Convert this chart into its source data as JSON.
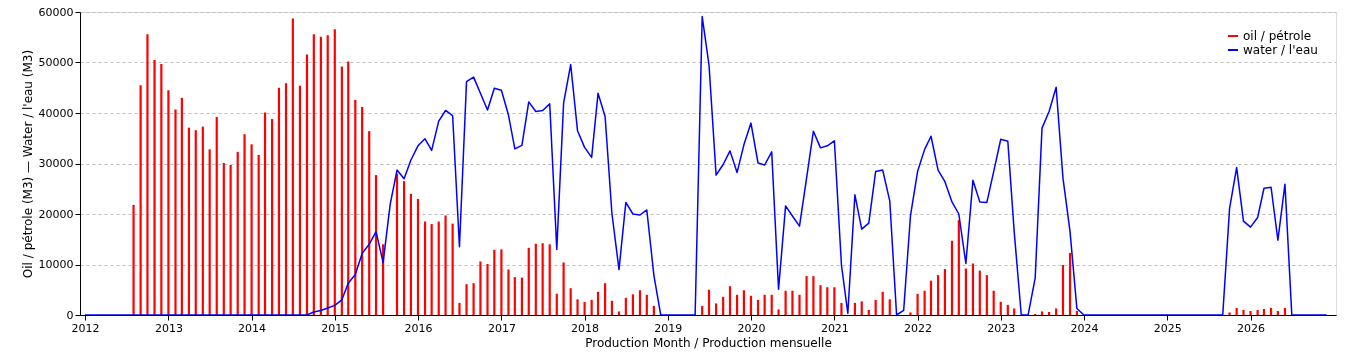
{
  "chart_data": {
    "type": "bar",
    "xlabel": "Production Month / Production mensuelle",
    "ylabel": "Oil / pétrole (M3)  —  Water / l'eau (M3)",
    "x": [
      "2012-01",
      "2012-02",
      "2012-03",
      "2012-04",
      "2012-05",
      "2012-06",
      "2012-07",
      "2012-08",
      "2012-09",
      "2012-10",
      "2012-11",
      "2012-12",
      "2013-01",
      "2013-02",
      "2013-03",
      "2013-04",
      "2013-05",
      "2013-06",
      "2013-07",
      "2013-08",
      "2013-09",
      "2013-10",
      "2013-11",
      "2013-12",
      "2014-01",
      "2014-02",
      "2014-03",
      "2014-04",
      "2014-05",
      "2014-06",
      "2014-07",
      "2014-08",
      "2014-09",
      "2014-10",
      "2014-11",
      "2014-12",
      "2015-01",
      "2015-02",
      "2015-03",
      "2015-04",
      "2015-05",
      "2015-06",
      "2015-07",
      "2015-08",
      "2015-09",
      "2015-10",
      "2015-11",
      "2015-12",
      "2016-01",
      "2016-02",
      "2016-03",
      "2016-04",
      "2016-05",
      "2016-06",
      "2016-07",
      "2016-08",
      "2016-09",
      "2016-10",
      "2016-11",
      "2016-12",
      "2017-01",
      "2017-02",
      "2017-03",
      "2017-04",
      "2017-05",
      "2017-06",
      "2017-07",
      "2017-08",
      "2017-09",
      "2017-10",
      "2017-11",
      "2017-12",
      "2018-01",
      "2018-02",
      "2018-03",
      "2018-04",
      "2018-05",
      "2018-06",
      "2018-07",
      "2018-08",
      "2018-09",
      "2018-10",
      "2018-11",
      "2018-12",
      "2019-01",
      "2019-02",
      "2019-03",
      "2019-04",
      "2019-05",
      "2019-06",
      "2019-07",
      "2019-08",
      "2019-09",
      "2019-10",
      "2019-11",
      "2019-12",
      "2020-01",
      "2020-02",
      "2020-03",
      "2020-04",
      "2020-05",
      "2020-06",
      "2020-07",
      "2020-08",
      "2020-09",
      "2020-10",
      "2020-11",
      "2020-12",
      "2021-01",
      "2021-02",
      "2021-03",
      "2021-04",
      "2021-05",
      "2021-06",
      "2021-07",
      "2021-08",
      "2021-09",
      "2021-10",
      "2021-11",
      "2021-12",
      "2022-01",
      "2022-02",
      "2022-03",
      "2022-04",
      "2022-05",
      "2022-06",
      "2022-07",
      "2022-08",
      "2022-09",
      "2022-10",
      "2022-11",
      "2022-12",
      "2023-01",
      "2023-02",
      "2023-03",
      "2023-04",
      "2023-05",
      "2023-06",
      "2023-07",
      "2023-08",
      "2023-09",
      "2023-10",
      "2023-11",
      "2023-12",
      "2024-01",
      "2024-02",
      "2024-03",
      "2024-04",
      "2024-05",
      "2024-06",
      "2024-07",
      "2024-08",
      "2024-09",
      "2024-10",
      "2024-11",
      "2024-12",
      "2025-01",
      "2025-02",
      "2025-03",
      "2025-04",
      "2025-05",
      "2025-06",
      "2025-07",
      "2025-08",
      "2025-09",
      "2025-10",
      "2025-11",
      "2025-12",
      "2026-01",
      "2026-02",
      "2026-03",
      "2026-04",
      "2026-05",
      "2026-06",
      "2026-07",
      "2026-08",
      "2026-09",
      "2026-10",
      "2026-11",
      "2026-12"
    ],
    "series": [
      {
        "name": "oil / pétrole",
        "color": "#ff0000",
        "values": [
          null,
          null,
          null,
          null,
          null,
          null,
          null,
          21800,
          45500,
          55600,
          50500,
          49700,
          44500,
          40700,
          43000,
          37100,
          36600,
          37300,
          32800,
          39200,
          30100,
          29700,
          32300,
          35800,
          33800,
          31700,
          40100,
          38800,
          45000,
          45900,
          58700,
          45400,
          51600,
          55600,
          55100,
          55400,
          56600,
          49200,
          50200,
          42600,
          41200,
          36400,
          27700,
          14000,
          null,
          28000,
          26500,
          24000,
          23000,
          18500,
          18000,
          18500,
          19700,
          18100,
          2400,
          6100,
          6300,
          10600,
          10100,
          12900,
          13000,
          9000,
          7500,
          7400,
          13300,
          14100,
          14200,
          14000,
          4200,
          10400,
          5300,
          3100,
          2600,
          3000,
          4600,
          6300,
          2800,
          700,
          3400,
          4100,
          4900,
          4000,
          1800,
          null,
          null,
          null,
          null,
          null,
          null,
          1800,
          5000,
          2300,
          3600,
          5700,
          4000,
          4900,
          3800,
          3000,
          4000,
          4000,
          1100,
          4800,
          4800,
          4000,
          7700,
          7700,
          5900,
          5500,
          5500,
          2400,
          null,
          2400,
          2700,
          1000,
          3000,
          4600,
          3100,
          null,
          null,
          500,
          4200,
          4800,
          6800,
          7900,
          9100,
          14700,
          18800,
          9200,
          10200,
          8800,
          7900,
          4800,
          2600,
          2000,
          1300,
          null,
          null,
          200,
          700,
          600,
          1300,
          9900,
          12300,
          800,
          null,
          null,
          null,
          null,
          null,
          null,
          null,
          null,
          null,
          null,
          null,
          null,
          null,
          null,
          null,
          null,
          null,
          null,
          null,
          null,
          null,
          500,
          1400,
          1000,
          800,
          1000,
          1200,
          1400,
          800,
          1400,
          null,
          null,
          null,
          null,
          null,
          null
        ]
      },
      {
        "name": "water / l'eau",
        "type": "line",
        "color": "#0000ff",
        "values": [
          0,
          0,
          0,
          0,
          0,
          0,
          0,
          0,
          0,
          0,
          0,
          0,
          0,
          0,
          0,
          0,
          0,
          0,
          0,
          0,
          0,
          0,
          0,
          0,
          0,
          0,
          0,
          0,
          0,
          0,
          0,
          0,
          0,
          600,
          900,
          1400,
          1900,
          3000,
          6300,
          8000,
          12200,
          14000,
          16500,
          10400,
          21900,
          28700,
          27000,
          30700,
          33500,
          34900,
          32600,
          38400,
          40500,
          39500,
          13500,
          46200,
          47100,
          43900,
          40600,
          44900,
          44500,
          39600,
          32900,
          33600,
          42200,
          40300,
          40500,
          41800,
          13000,
          42000,
          49600,
          36500,
          33200,
          31200,
          43900,
          39300,
          20100,
          9000,
          22300,
          20000,
          19800,
          20800,
          7900,
          0,
          0,
          0,
          0,
          0,
          0,
          59100,
          49500,
          27700,
          29800,
          32500,
          28200,
          33700,
          38000,
          30100,
          29700,
          32300,
          5100,
          21600,
          19600,
          17600,
          27100,
          36400,
          33100,
          33500,
          34500,
          9900,
          300,
          23800,
          17000,
          18200,
          28400,
          28700,
          22600,
          0,
          900,
          19700,
          28400,
          32800,
          35400,
          28700,
          26400,
          22400,
          20000,
          10200,
          26700,
          22400,
          22300,
          28400,
          34800,
          34400,
          16500,
          0,
          0,
          7300,
          37000,
          40300,
          45100,
          27100,
          16500,
          1300,
          0,
          0,
          0,
          0,
          0,
          0,
          0,
          0,
          0,
          0,
          0,
          0,
          0,
          0,
          0,
          0,
          0,
          0,
          0,
          0,
          0,
          21100,
          29200,
          18600,
          17400,
          19300,
          25100,
          25300,
          14800,
          25900,
          0,
          0,
          0,
          0,
          0,
          0
        ]
      }
    ],
    "xlim": [
      "2012-01",
      "2026-12-20"
    ],
    "xticks": [
      "2012",
      "2013",
      "2014",
      "2015",
      "2016",
      "2017",
      "2018",
      "2019",
      "2020",
      "2021",
      "2022",
      "2023",
      "2024",
      "2025",
      "2026"
    ],
    "ylim": [
      0,
      60000
    ],
    "yticks": [
      0,
      10000,
      20000,
      30000,
      40000,
      50000,
      60000
    ],
    "grid": "y",
    "legend": "top right"
  }
}
